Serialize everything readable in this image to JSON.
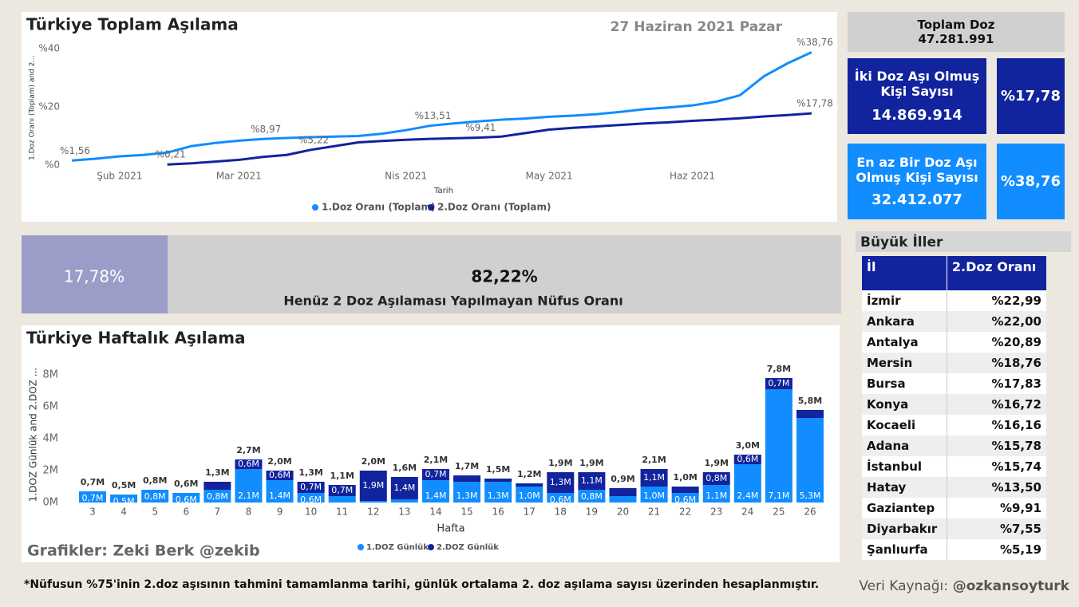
{
  "chart_data": [
    {
      "type": "line",
      "title": "Türkiye Toplam Aşılama",
      "x_label": "Tarih",
      "y_label": "1.Doz Oranı (Toplam) and 2...",
      "categories": [
        null,
        null,
        "Şub 2021",
        null,
        null,
        null,
        null,
        "Mar 2021",
        null,
        null,
        null,
        null,
        null,
        null,
        "Nis 2021",
        null,
        null,
        null,
        null,
        null,
        "May 2021",
        null,
        null,
        null,
        null,
        null,
        "Haz 2021",
        null,
        null,
        null,
        null,
        null
      ],
      "series": [
        {
          "name": "1.Doz Oranı (Toplam)",
          "color": "#118dff",
          "values": [
            1.56,
            2.2,
            3.0,
            3.5,
            4.3,
            6.5,
            7.6,
            8.4,
            8.97,
            9.3,
            9.6,
            9.8,
            10.0,
            10.8,
            12.0,
            13.51,
            14.3,
            15.0,
            15.6,
            16.0,
            16.6,
            17.0,
            17.5,
            18.3,
            19.2,
            19.8,
            20.5,
            21.8,
            24.0,
            30.5,
            35.0,
            38.76
          ],
          "value_labels": [
            "%1,56",
            null,
            null,
            null,
            null,
            null,
            null,
            null,
            "%8,97",
            null,
            null,
            null,
            null,
            null,
            null,
            "%13,51",
            null,
            null,
            null,
            null,
            null,
            null,
            null,
            null,
            null,
            null,
            null,
            null,
            null,
            null,
            null,
            "%38,76"
          ]
        },
        {
          "name": "2.Doz Oranı (Toplam)",
          "color": "#12239e",
          "values": [
            null,
            null,
            null,
            null,
            0.21,
            0.6,
            1.2,
            1.8,
            2.8,
            3.5,
            5.22,
            6.5,
            7.8,
            8.3,
            8.7,
            9.0,
            9.2,
            9.41,
            9.8,
            11.0,
            12.2,
            12.8,
            13.3,
            13.8,
            14.3,
            14.7,
            15.2,
            15.6,
            16.1,
            16.7,
            17.2,
            17.78
          ],
          "value_labels": [
            null,
            null,
            null,
            null,
            "%0,21",
            null,
            null,
            null,
            null,
            null,
            "%5,22",
            null,
            null,
            null,
            null,
            null,
            null,
            "%9,41",
            null,
            null,
            null,
            null,
            null,
            null,
            null,
            null,
            null,
            null,
            null,
            null,
            null,
            "%17,78"
          ]
        }
      ],
      "ylim": [
        0,
        40
      ],
      "yticks": [
        {
          "value": 0,
          "label": "%0"
        },
        {
          "value": 20,
          "label": "%20"
        },
        {
          "value": 40,
          "label": "%40"
        }
      ],
      "legend": "bottom"
    },
    {
      "type": "bar",
      "stacked": true,
      "title": "Türkiye Haftalık Aşılama",
      "x_label": "Hafta",
      "y_label": "1.DOZ Günlük and 2.DOZ ...",
      "categories": [
        "3",
        "4",
        "5",
        "6",
        "7",
        "8",
        "9",
        "10",
        "11",
        "12",
        "13",
        "14",
        "15",
        "16",
        "17",
        "18",
        "19",
        "20",
        "21",
        "22",
        "23",
        "24",
        "25",
        "26"
      ],
      "series": [
        {
          "name": "1.DOZ Günlük",
          "color": "#118dff",
          "values": [
            0.7,
            0.5,
            0.8,
            0.6,
            0.8,
            2.1,
            1.4,
            0.6,
            0.4,
            0.1,
            0.2,
            1.4,
            1.3,
            1.3,
            1.0,
            0.6,
            0.8,
            0.4,
            1.0,
            0.6,
            1.1,
            2.4,
            7.1,
            5.3
          ],
          "value_labels": [
            "0,7M",
            "0,5M",
            "0,8M",
            "0,6M",
            "0,8M",
            "2,1M",
            "1,4M",
            "0,6M",
            null,
            null,
            null,
            "1,4M",
            "1,3M",
            "1,3M",
            "1,0M",
            "0,6M",
            "0,8M",
            null,
            "1,0M",
            "0,6M",
            "1,1M",
            "2,4M",
            "7,1M",
            "5,3M"
          ]
        },
        {
          "name": "2.DOZ Günlük",
          "color": "#12239e",
          "values": [
            0,
            0,
            0,
            0,
            0.5,
            0.6,
            0.6,
            0.7,
            0.7,
            1.9,
            1.4,
            0.7,
            0.4,
            0.2,
            0.2,
            1.3,
            1.1,
            0.5,
            1.1,
            0.4,
            0.8,
            0.6,
            0.7,
            0.5
          ],
          "value_labels": [
            null,
            null,
            null,
            null,
            null,
            "0,6M",
            "0,6M",
            "0,7M",
            "0,7M",
            "1,9M",
            "1,4M",
            "0,7M",
            null,
            null,
            null,
            "1,3M",
            "1,1M",
            null,
            "1,1M",
            null,
            "0,8M",
            "0,6M",
            "0,7M",
            null
          ]
        }
      ],
      "totals": {
        "values": [
          0.7,
          0.5,
          0.8,
          0.6,
          1.3,
          2.7,
          2.0,
          1.3,
          1.1,
          2.0,
          1.6,
          2.1,
          1.7,
          1.5,
          1.2,
          1.9,
          1.9,
          0.9,
          2.1,
          1.0,
          1.9,
          3.0,
          7.8,
          5.8
        ],
        "value_labels": [
          "0,7M",
          "0,5M",
          "0,8M",
          "0,6M",
          "1,3M",
          "2,7M",
          "2,0M",
          "1,3M",
          "1,1M",
          "2,0M",
          "1,6M",
          "2,1M",
          "1,7M",
          "1,5M",
          "1,2M",
          "1,9M",
          "1,9M",
          "0,9M",
          "2,1M",
          "1,0M",
          "1,9M",
          "3,0M",
          "7,8M",
          "5,8M"
        ]
      },
      "ylim": [
        0,
        8
      ],
      "yticks": [
        {
          "value": 0,
          "label": "0M"
        },
        {
          "value": 2,
          "label": "2M"
        },
        {
          "value": 4,
          "label": "4M"
        },
        {
          "value": 6,
          "label": "6M"
        },
        {
          "value": 8,
          "label": "8M"
        }
      ],
      "legend": "bottom"
    }
  ],
  "header": {
    "date": "27 Haziran 2021 Pazar"
  },
  "kpis": {
    "total_label": "Toplam Doz",
    "total_value": "47.281.991",
    "two_dose_label": "İki Doz Aşı Olmuş Kişi Sayısı",
    "two_dose_value": "14.869.914",
    "two_dose_pct": "%17,78",
    "one_dose_label": "En az Bir Doz Aşı Olmuş Kişi Sayısı",
    "one_dose_value": "32.412.077",
    "one_dose_pct": "%38,76"
  },
  "progress": {
    "done": "17,78%",
    "remaining": "82,22%",
    "remaining_label": "Henüz 2 Doz Aşılaması Yapılmayan Nüfus Oranı"
  },
  "table": {
    "title": "Büyük İller",
    "columns": [
      "İl",
      "2.Doz Oranı"
    ],
    "rows": [
      [
        "İzmir",
        "%22,99"
      ],
      [
        "Ankara",
        "%22,00"
      ],
      [
        "Antalya",
        "%20,89"
      ],
      [
        "Mersin",
        "%18,76"
      ],
      [
        "Bursa",
        "%17,83"
      ],
      [
        "Konya",
        "%16,72"
      ],
      [
        "Kocaeli",
        "%16,16"
      ],
      [
        "Adana",
        "%15,78"
      ],
      [
        "İstanbul",
        "%15,74"
      ],
      [
        "Hatay",
        "%13,50"
      ],
      [
        "Gaziantep",
        "%9,91"
      ],
      [
        "Diyarbakır",
        "%7,55"
      ],
      [
        "Şanlıurfa",
        "%5,19"
      ]
    ]
  },
  "footer": {
    "credit": "Grafikler: Zeki Berk @zekib",
    "note": "*Nüfusun %75'inin 2.doz aşısının tahmini tamamlanma tarihi, günlük ortalama 2. doz aşılama sayısı üzerinden hesaplanmıştır.",
    "source_label": "Veri Kaynağı:",
    "source_handle": "@ozkansoyturk"
  }
}
